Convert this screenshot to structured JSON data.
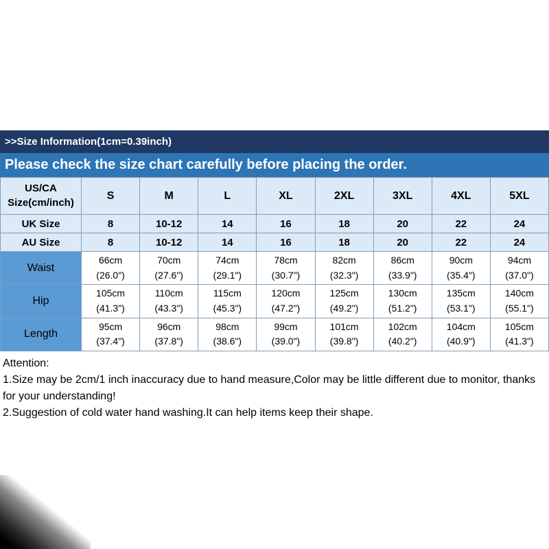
{
  "header": {
    "size_info": ">>Size Information(1cm=0.39inch)",
    "check_notice": "Please check the size chart carefully before placing the order."
  },
  "table": {
    "corner": {
      "line1": "US/CA",
      "line2": "Size(cm/inch)"
    },
    "sizes": [
      "S",
      "M",
      "L",
      "XL",
      "2XL",
      "3XL",
      "4XL",
      "5XL"
    ],
    "uk": {
      "label": "UK Size",
      "values": [
        "8",
        "10-12",
        "14",
        "16",
        "18",
        "20",
        "22",
        "24"
      ]
    },
    "au": {
      "label": "AU Size",
      "values": [
        "8",
        "10-12",
        "14",
        "16",
        "18",
        "20",
        "22",
        "24"
      ]
    },
    "waist": {
      "label": "Waist",
      "cm": [
        "66cm",
        "70cm",
        "74cm",
        "78cm",
        "82cm",
        "86cm",
        "90cm",
        "94cm"
      ],
      "inch": [
        "(26.0\")",
        "(27.6\")",
        "(29.1\")",
        "(30.7\")",
        "(32.3\")",
        "(33.9\")",
        "(35.4\")",
        "(37.0\")"
      ]
    },
    "hip": {
      "label": "Hip",
      "cm": [
        "105cm",
        "110cm",
        "115cm",
        "120cm",
        "125cm",
        "130cm",
        "135cm",
        "140cm"
      ],
      "inch": [
        "(41.3\")",
        "(43.3\")",
        "(45.3\")",
        "(47.2\")",
        "(49.2\")",
        "(51.2\")",
        "(53.1\")",
        "(55.1\")"
      ]
    },
    "length": {
      "label": "Length",
      "cm": [
        "95cm",
        "96cm",
        "98cm",
        "99cm",
        "101cm",
        "102cm",
        "104cm",
        "105cm"
      ],
      "inch": [
        "(37.4\")",
        "(37.8\")",
        "(38.6\")",
        "(39.0\")",
        "(39.8\")",
        "(40.2\")",
        "(40.9\")",
        "(41.3\")"
      ]
    }
  },
  "attention": {
    "title": "Attention:",
    "line1": "1.Size may be 2cm/1 inch inaccuracy due to hand measure,Color may be little different due to monitor, thanks for your understanding!",
    "line2": "2.Suggestion of cold water hand washing.It can help items keep their shape."
  },
  "colors": {
    "header_dark_blue": "#1f3864",
    "banner_blue": "#2e75b6",
    "row_light_blue": "#dce9f7",
    "label_blue": "#5b9bd5",
    "grid_line": "#7f9db9"
  }
}
